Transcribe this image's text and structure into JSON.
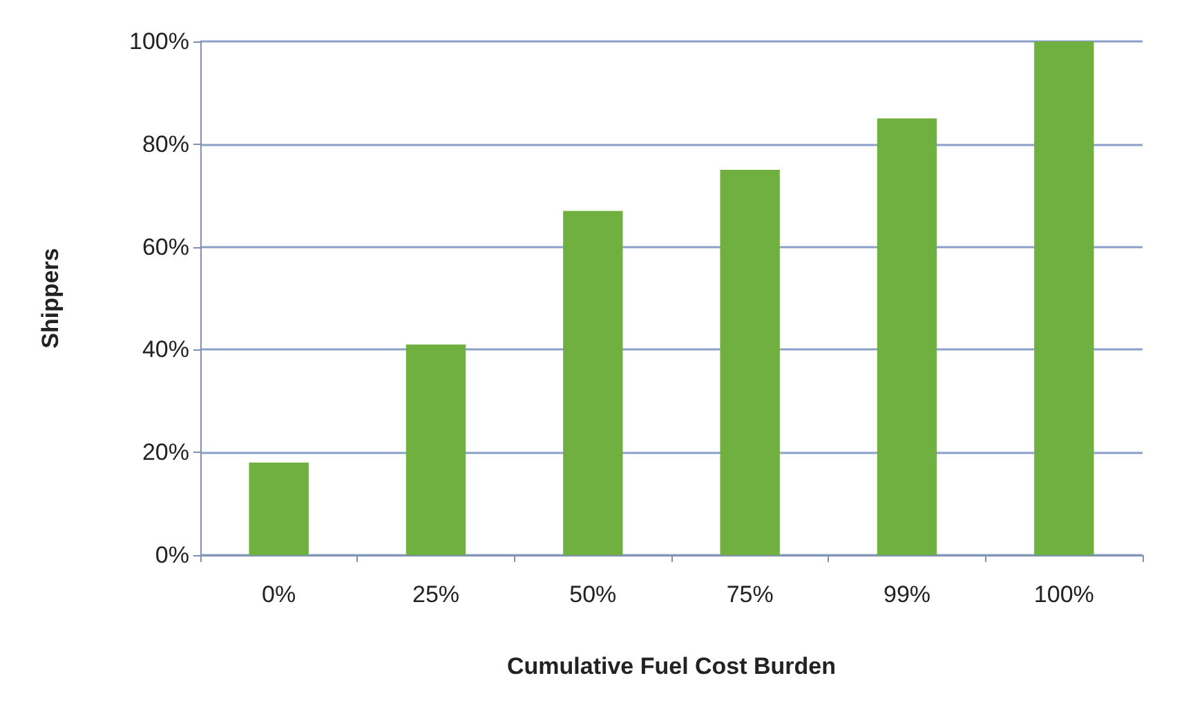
{
  "chart_data": {
    "type": "bar",
    "xlabel": "Cumulative Fuel Cost Burden",
    "ylabel": "Shippers",
    "categories": [
      "0%",
      "25%",
      "50%",
      "75%",
      "99%",
      "100%"
    ],
    "values": [
      18,
      41,
      67,
      75,
      85,
      100
    ],
    "color": "#70b040",
    "ylim": [
      0,
      100
    ],
    "yticks": [
      {
        "value": 0,
        "label": "0%"
      },
      {
        "value": 20,
        "label": "20%"
      },
      {
        "value": 40,
        "label": "40%"
      },
      {
        "value": 60,
        "label": "60%"
      },
      {
        "value": 80,
        "label": "80%"
      },
      {
        "value": 100,
        "label": "100%"
      }
    ],
    "grid": "y"
  }
}
